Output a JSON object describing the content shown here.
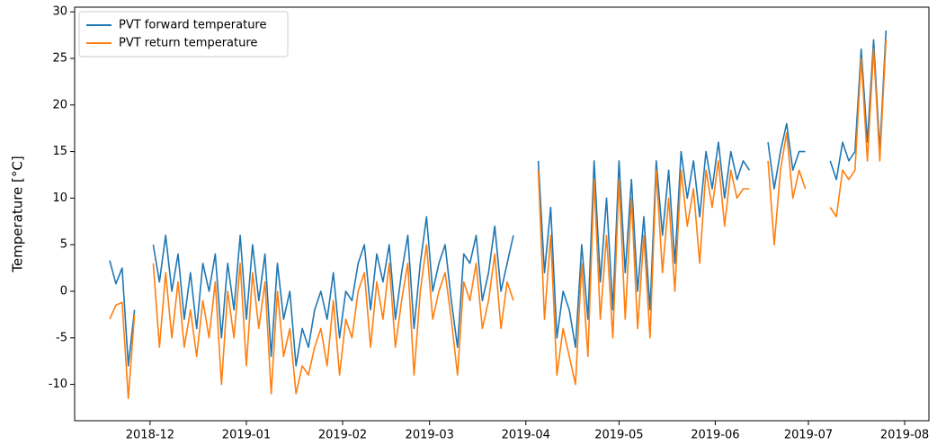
{
  "chart_data": {
    "type": "line",
    "ylabel": "Temperature [°C]",
    "x": [
      -3,
      -1,
      1,
      3,
      5,
      7,
      9,
      11,
      13,
      15,
      17,
      19,
      21,
      23,
      25,
      27,
      29,
      31,
      33,
      35,
      37,
      39,
      41,
      43,
      45,
      47,
      49,
      51,
      53,
      55,
      57,
      59,
      61,
      63,
      65,
      67,
      69,
      71,
      73,
      75,
      77,
      79,
      81,
      83,
      85,
      87,
      89,
      91,
      93,
      95,
      97,
      99,
      101,
      103,
      105,
      107,
      109,
      111,
      113,
      115,
      117,
      119,
      121,
      123,
      125,
      127,
      129,
      131,
      133,
      135,
      137,
      139,
      141,
      143,
      145,
      147,
      149,
      151,
      153,
      155,
      157,
      159,
      161,
      163,
      165,
      167,
      169,
      171,
      173,
      175,
      177,
      179,
      181,
      183,
      185,
      187,
      189,
      191,
      193,
      195,
      197,
      199,
      201,
      203,
      205,
      207,
      209,
      211,
      213,
      215,
      217,
      219,
      221,
      223,
      225,
      227,
      229,
      231,
      233,
      235,
      237,
      239,
      241,
      243,
      245,
      247
    ],
    "series": [
      {
        "name": "PVT forward temperature",
        "color": "#1f77b4",
        "values": [
          3.3,
          0.8,
          2.5,
          -8,
          -2,
          null,
          null,
          5,
          1,
          6,
          0,
          4,
          -3,
          2,
          -4,
          3,
          0,
          4,
          -5,
          3,
          -2,
          6,
          -3,
          5,
          -1,
          4,
          -7,
          3,
          -3,
          0,
          -8,
          -4,
          -6,
          -2,
          0,
          -3,
          2,
          -5,
          0,
          -1,
          3,
          5,
          -2,
          4,
          1,
          5,
          -3,
          2,
          6,
          -4,
          3,
          8,
          0,
          3,
          5,
          -1,
          -6,
          4,
          3,
          6,
          -1,
          2,
          7,
          0,
          3,
          6,
          null,
          null,
          null,
          14,
          2,
          9,
          -5,
          0,
          -2,
          -6,
          5,
          -3,
          14,
          1,
          10,
          -2,
          14,
          2,
          12,
          0,
          8,
          -2,
          14,
          6,
          13,
          3,
          15,
          10,
          14,
          8,
          15,
          11,
          16,
          10,
          15,
          12,
          14,
          13,
          null,
          null,
          16,
          11,
          15,
          18,
          13,
          15,
          15,
          null,
          null,
          null,
          14,
          12,
          16,
          14,
          15,
          26,
          16,
          27,
          15,
          28
        ]
      },
      {
        "name": "PVT return temperature",
        "color": "#ff7f0e",
        "values": [
          -3,
          -1.5,
          -1.2,
          -11.5,
          -2.5,
          null,
          null,
          3,
          -6,
          2,
          -5,
          1,
          -6,
          -2,
          -7,
          -1,
          -5,
          1,
          -10,
          0,
          -5,
          3,
          -8,
          2,
          -4,
          1,
          -11,
          0,
          -7,
          -4,
          -11,
          -8,
          -9,
          -6,
          -4,
          -8,
          -1,
          -9,
          -3,
          -5,
          0,
          2,
          -6,
          1,
          -3,
          3,
          -6,
          -1,
          3,
          -9,
          0,
          5,
          -3,
          0,
          2,
          -3,
          -9,
          1,
          -1,
          3,
          -4,
          -1,
          4,
          -4,
          1,
          -1,
          null,
          null,
          null,
          13,
          -3,
          6,
          -9,
          -4,
          -7,
          -10,
          3,
          -7,
          12,
          -3,
          6,
          -5,
          12,
          -3,
          10,
          -4,
          6,
          -5,
          13,
          2,
          10,
          0,
          13,
          7,
          11,
          3,
          13,
          9,
          14,
          7,
          13,
          10,
          11,
          11,
          null,
          null,
          14,
          5,
          13,
          17,
          10,
          13,
          11,
          null,
          null,
          null,
          9,
          8,
          13,
          12,
          13,
          25,
          14,
          26,
          14,
          27
        ]
      }
    ],
    "xlim": [
      -14.3,
      260.8
    ],
    "xticks": [
      {
        "value": 10,
        "label": "2018-12"
      },
      {
        "value": 41,
        "label": "2019-01"
      },
      {
        "value": 72,
        "label": "2019-02"
      },
      {
        "value": 100,
        "label": "2019-03"
      },
      {
        "value": 131,
        "label": "2019-04"
      },
      {
        "value": 161,
        "label": "2019-05"
      },
      {
        "value": 192,
        "label": "2019-06"
      },
      {
        "value": 222,
        "label": "2019-07"
      },
      {
        "value": 253,
        "label": "2019-08"
      }
    ],
    "ylim": [
      -13.9,
      30.5
    ],
    "yticks": [
      -10,
      -5,
      0,
      5,
      10,
      15,
      20,
      25,
      30
    ],
    "legend": "upper left"
  }
}
